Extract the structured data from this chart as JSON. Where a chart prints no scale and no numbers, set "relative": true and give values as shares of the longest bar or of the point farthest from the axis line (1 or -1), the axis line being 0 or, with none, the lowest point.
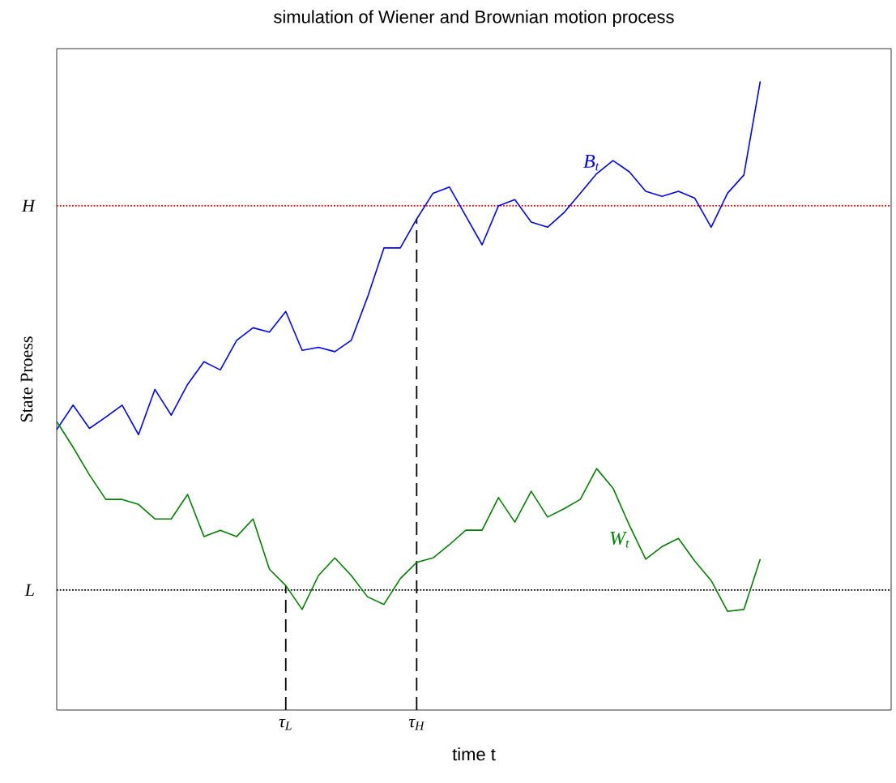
{
  "chart_data": {
    "type": "line",
    "title": "simulation of Wiener and Brownian motion process",
    "xlabel": "time t",
    "ylabel": "State Proess",
    "relative": true,
    "marker": "none",
    "line_style": "solid",
    "legend": false,
    "categories": [
      null,
      null,
      null,
      null,
      null,
      null,
      null,
      null,
      null,
      null,
      null,
      null,
      null,
      null,
      "τ$_{L}$",
      null,
      null,
      null,
      null,
      null,
      null,
      null,
      "τ$_{H}$",
      null,
      null,
      null,
      null,
      null,
      null,
      null,
      null,
      null,
      null,
      null,
      null,
      null,
      null,
      null,
      null,
      null,
      null,
      null,
      null,
      null,
      null,
      null,
      null,
      null,
      null,
      null,
      null,
      null
    ],
    "ref_lines": [
      {
        "axis": "y",
        "value": 0.802,
        "label": "H",
        "color": "#ff0000",
        "line_style": "dotted"
      },
      {
        "axis": "y",
        "value": 0.191,
        "label": "L",
        "color": "#000000",
        "line_style": "dotted"
      },
      {
        "axis": "x",
        "value": "τ$_{L}$",
        "color": "#000000",
        "line_style": "dashed"
      },
      {
        "axis": "x",
        "value": "τ$_{H}$",
        "color": "#000000",
        "line_style": "dashed"
      }
    ],
    "series": [
      {
        "name": "B$_{t}$",
        "color": "#0000ff",
        "values": [
          0.446,
          0.485,
          0.448,
          0.466,
          0.485,
          0.438,
          0.51,
          0.469,
          0.518,
          0.554,
          0.541,
          0.588,
          0.608,
          0.601,
          0.634,
          0.572,
          0.577,
          0.57,
          0.588,
          0.657,
          0.735,
          0.735,
          0.781,
          0.822,
          0.832,
          0.786,
          0.74,
          0.802,
          0.812,
          0.776,
          0.768,
          0.791,
          0.822,
          0.853,
          0.874,
          0.856,
          0.825,
          0.817,
          0.825,
          0.814,
          0.768,
          0.822,
          0.851,
          1,
          null,
          null,
          null,
          null,
          null,
          null,
          null,
          null
        ]
      },
      {
        "name": "W$_{t}$",
        "color": "#008000",
        "values": [
          0.459,
          0.418,
          0.374,
          0.335,
          0.335,
          0.327,
          0.304,
          0.304,
          0.343,
          0.276,
          0.286,
          0.276,
          0.304,
          0.224,
          0.198,
          0.16,
          0.214,
          0.242,
          0.214,
          0.18,
          0.168,
          0.209,
          0.235,
          0.242,
          0.263,
          0.286,
          0.286,
          0.338,
          0.299,
          0.348,
          0.307,
          0.32,
          0.335,
          0.384,
          0.353,
          0.294,
          0.24,
          0.26,
          0.273,
          0.237,
          0.206,
          0.157,
          0.16,
          0.24,
          null,
          null,
          null,
          null,
          null,
          null,
          null,
          null
        ]
      }
    ]
  }
}
